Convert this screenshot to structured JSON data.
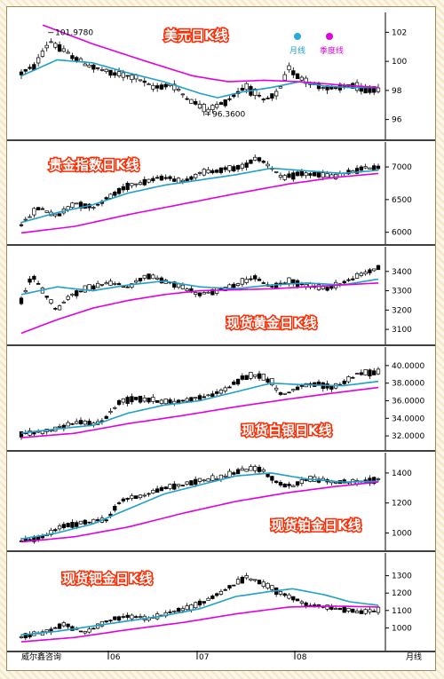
{
  "colors": {
    "candle_up": "#ffffff",
    "candle_down": "#000000",
    "ma_month": "#1ea0c8",
    "ma_quarter": "#e000e0",
    "title_fill": "#ffffff",
    "title_outline": "#ff2a00",
    "divider": "#000000"
  },
  "legend": {
    "month": "月线",
    "quarter": "季度线"
  },
  "x_axis": {
    "labels": [
      "威尔鑫咨询",
      "06",
      "07",
      "08",
      "月线"
    ]
  },
  "chart_data": [
    {
      "type": "candlestick",
      "title": "美元日K线",
      "ylim": [
        95,
        103
      ],
      "yticks": [
        "102",
        "100",
        "98",
        "96"
      ],
      "yvals": [
        102,
        100,
        98,
        96
      ],
      "annotations": [
        {
          "text": "101.9780",
          "x_frac": 0.09,
          "y": 101.978
        },
        {
          "text": "96.3600",
          "x_frac": 0.53,
          "y": 96.36
        }
      ],
      "anchors": [
        [
          0,
          99.2
        ],
        [
          0.04,
          99.7
        ],
        [
          0.08,
          101.4
        ],
        [
          0.12,
          100.7
        ],
        [
          0.18,
          99.8
        ],
        [
          0.25,
          99.2
        ],
        [
          0.32,
          98.9
        ],
        [
          0.37,
          98.2
        ],
        [
          0.42,
          98.4
        ],
        [
          0.47,
          97.4
        ],
        [
          0.52,
          96.6
        ],
        [
          0.57,
          97.2
        ],
        [
          0.63,
          98.3
        ],
        [
          0.68,
          97.3
        ],
        [
          0.72,
          97.8
        ],
        [
          0.75,
          99.5
        ],
        [
          0.78,
          98.9
        ],
        [
          0.83,
          98.3
        ],
        [
          0.88,
          98.1
        ],
        [
          0.92,
          98.4
        ],
        [
          0.96,
          98.0
        ],
        [
          1.0,
          98.1
        ]
      ],
      "month_ma": [
        [
          0,
          99.0
        ],
        [
          0.1,
          100.1
        ],
        [
          0.2,
          99.9
        ],
        [
          0.3,
          99.2
        ],
        [
          0.4,
          98.6
        ],
        [
          0.5,
          97.8
        ],
        [
          0.55,
          97.5
        ],
        [
          0.62,
          97.9
        ],
        [
          0.7,
          98.2
        ],
        [
          0.78,
          98.6
        ],
        [
          0.85,
          98.3
        ],
        [
          0.92,
          98.2
        ],
        [
          1.0,
          98.2
        ]
      ],
      "quarter_ma": [
        [
          0.06,
          102.5
        ],
        [
          0.2,
          101.2
        ],
        [
          0.35,
          100.0
        ],
        [
          0.48,
          99.0
        ],
        [
          0.58,
          98.6
        ],
        [
          0.68,
          98.7
        ],
        [
          0.78,
          98.6
        ],
        [
          0.88,
          98.4
        ],
        [
          1.0,
          98.2
        ]
      ]
    },
    {
      "type": "candlestick",
      "title": "贵金指数日K线",
      "ylim": [
        5900,
        7300
      ],
      "yticks": [
        "7000",
        "6500",
        "6000"
      ],
      "yvals": [
        7000,
        6500,
        6000
      ],
      "annotations": [],
      "anchors": [
        [
          0,
          6120
        ],
        [
          0.05,
          6380
        ],
        [
          0.1,
          6240
        ],
        [
          0.15,
          6450
        ],
        [
          0.2,
          6380
        ],
        [
          0.25,
          6550
        ],
        [
          0.3,
          6720
        ],
        [
          0.35,
          6780
        ],
        [
          0.4,
          6850
        ],
        [
          0.45,
          6780
        ],
        [
          0.5,
          6900
        ],
        [
          0.55,
          6950
        ],
        [
          0.62,
          7000
        ],
        [
          0.66,
          7150
        ],
        [
          0.7,
          7000
        ],
        [
          0.73,
          6820
        ],
        [
          0.78,
          6900
        ],
        [
          0.83,
          6880
        ],
        [
          0.88,
          6850
        ],
        [
          0.92,
          6920
        ],
        [
          0.96,
          6980
        ],
        [
          1.0,
          7000
        ]
      ],
      "month_ma": [
        [
          0,
          6150
        ],
        [
          0.1,
          6300
        ],
        [
          0.2,
          6420
        ],
        [
          0.3,
          6600
        ],
        [
          0.4,
          6720
        ],
        [
          0.5,
          6800
        ],
        [
          0.6,
          6880
        ],
        [
          0.7,
          6980
        ],
        [
          0.8,
          6940
        ],
        [
          0.9,
          6900
        ],
        [
          1.0,
          6950
        ]
      ],
      "quarter_ma": [
        [
          0,
          5990
        ],
        [
          0.15,
          6090
        ],
        [
          0.3,
          6270
        ],
        [
          0.45,
          6430
        ],
        [
          0.6,
          6590
        ],
        [
          0.75,
          6740
        ],
        [
          0.88,
          6840
        ],
        [
          1.0,
          6900
        ]
      ]
    },
    {
      "type": "candlestick",
      "title": "现货黄金日K线",
      "ylim": [
        3050,
        3500
      ],
      "yticks": [
        "3400",
        "3300",
        "3200",
        "3100"
      ],
      "yvals": [
        3400,
        3300,
        3200,
        3100
      ],
      "annotations": [],
      "anchors": [
        [
          0,
          3250
        ],
        [
          0.03,
          3380
        ],
        [
          0.06,
          3300
        ],
        [
          0.1,
          3200
        ],
        [
          0.14,
          3280
        ],
        [
          0.2,
          3320
        ],
        [
          0.25,
          3340
        ],
        [
          0.3,
          3320
        ],
        [
          0.35,
          3380
        ],
        [
          0.4,
          3350
        ],
        [
          0.45,
          3320
        ],
        [
          0.5,
          3280
        ],
        [
          0.55,
          3300
        ],
        [
          0.6,
          3330
        ],
        [
          0.65,
          3370
        ],
        [
          0.7,
          3320
        ],
        [
          0.75,
          3350
        ],
        [
          0.8,
          3330
        ],
        [
          0.85,
          3310
        ],
        [
          0.9,
          3340
        ],
        [
          0.95,
          3380
        ],
        [
          1.0,
          3420
        ]
      ],
      "month_ma": [
        [
          0,
          3280
        ],
        [
          0.1,
          3320
        ],
        [
          0.2,
          3300
        ],
        [
          0.3,
          3330
        ],
        [
          0.4,
          3350
        ],
        [
          0.5,
          3320
        ],
        [
          0.6,
          3310
        ],
        [
          0.7,
          3330
        ],
        [
          0.8,
          3340
        ],
        [
          0.9,
          3330
        ],
        [
          1.0,
          3360
        ]
      ],
      "quarter_ma": [
        [
          0,
          3080
        ],
        [
          0.1,
          3150
        ],
        [
          0.2,
          3210
        ],
        [
          0.3,
          3250
        ],
        [
          0.4,
          3280
        ],
        [
          0.5,
          3300
        ],
        [
          0.6,
          3305
        ],
        [
          0.7,
          3310
        ],
        [
          0.8,
          3320
        ],
        [
          0.9,
          3330
        ],
        [
          1.0,
          3340
        ]
      ]
    },
    {
      "type": "candlestick",
      "title": "现货白银日K线",
      "ylim": [
        31000,
        41500
      ],
      "yticks": [
        "40.0000",
        "38.0000",
        "36.0000",
        "34.0000",
        "32.0000"
      ],
      "yvals": [
        40000,
        38000,
        36000,
        34000,
        32000
      ],
      "annotations": [],
      "anchors": [
        [
          0,
          32200
        ],
        [
          0.08,
          32600
        ],
        [
          0.15,
          33500
        ],
        [
          0.22,
          33400
        ],
        [
          0.28,
          36000
        ],
        [
          0.32,
          36300
        ],
        [
          0.38,
          36000
        ],
        [
          0.43,
          35800
        ],
        [
          0.48,
          36300
        ],
        [
          0.52,
          36500
        ],
        [
          0.57,
          37200
        ],
        [
          0.62,
          38600
        ],
        [
          0.66,
          39000
        ],
        [
          0.7,
          38200
        ],
        [
          0.73,
          36600
        ],
        [
          0.78,
          37600
        ],
        [
          0.83,
          37900
        ],
        [
          0.87,
          37500
        ],
        [
          0.9,
          38000
        ],
        [
          0.94,
          39000
        ],
        [
          0.97,
          39200
        ],
        [
          1.0,
          39300
        ]
      ],
      "month_ma": [
        [
          0,
          32300
        ],
        [
          0.1,
          32800
        ],
        [
          0.2,
          33200
        ],
        [
          0.3,
          34600
        ],
        [
          0.4,
          35500
        ],
        [
          0.5,
          36000
        ],
        [
          0.6,
          37000
        ],
        [
          0.7,
          38000
        ],
        [
          0.8,
          37800
        ],
        [
          0.9,
          37700
        ],
        [
          1.0,
          38200
        ]
      ],
      "quarter_ma": [
        [
          0,
          31800
        ],
        [
          0.15,
          32300
        ],
        [
          0.3,
          33400
        ],
        [
          0.45,
          34300
        ],
        [
          0.6,
          35300
        ],
        [
          0.75,
          36200
        ],
        [
          0.88,
          36900
        ],
        [
          1.0,
          37500
        ]
      ]
    },
    {
      "type": "candlestick",
      "title": "现货铂金日K线",
      "ylim": [
        920,
        1500
      ],
      "yticks": [
        "1400",
        "1200",
        "1000"
      ],
      "yvals": [
        1400,
        1200,
        1000
      ],
      "annotations": [],
      "anchors": [
        [
          0,
          950
        ],
        [
          0.06,
          970
        ],
        [
          0.12,
          1050
        ],
        [
          0.18,
          1070
        ],
        [
          0.24,
          1090
        ],
        [
          0.28,
          1220
        ],
        [
          0.34,
          1250
        ],
        [
          0.4,
          1300
        ],
        [
          0.45,
          1320
        ],
        [
          0.5,
          1350
        ],
        [
          0.56,
          1370
        ],
        [
          0.62,
          1420
        ],
        [
          0.67,
          1430
        ],
        [
          0.72,
          1330
        ],
        [
          0.76,
          1310
        ],
        [
          0.8,
          1360
        ],
        [
          0.85,
          1350
        ],
        [
          0.9,
          1340
        ],
        [
          0.95,
          1340
        ],
        [
          1.0,
          1360
        ]
      ],
      "month_ma": [
        [
          0,
          960
        ],
        [
          0.1,
          1000
        ],
        [
          0.2,
          1060
        ],
        [
          0.3,
          1160
        ],
        [
          0.4,
          1260
        ],
        [
          0.5,
          1320
        ],
        [
          0.6,
          1380
        ],
        [
          0.7,
          1400
        ],
        [
          0.8,
          1360
        ],
        [
          0.9,
          1340
        ],
        [
          1.0,
          1345
        ]
      ],
      "quarter_ma": [
        [
          0,
          940
        ],
        [
          0.15,
          975
        ],
        [
          0.3,
          1040
        ],
        [
          0.45,
          1130
        ],
        [
          0.6,
          1210
        ],
        [
          0.75,
          1270
        ],
        [
          0.88,
          1310
        ],
        [
          1.0,
          1340
        ]
      ]
    },
    {
      "type": "candlestick",
      "title": "现货钯金日K线",
      "ylim": [
        900,
        1400
      ],
      "yticks": [
        "1300",
        "1200",
        "1100",
        "1000"
      ],
      "yvals": [
        1300,
        1200,
        1100,
        1000
      ],
      "annotations": [],
      "anchors": [
        [
          0,
          950
        ],
        [
          0.06,
          970
        ],
        [
          0.12,
          1020
        ],
        [
          0.18,
          970
        ],
        [
          0.24,
          1040
        ],
        [
          0.3,
          1070
        ],
        [
          0.36,
          1050
        ],
        [
          0.42,
          1090
        ],
        [
          0.48,
          1120
        ],
        [
          0.53,
          1170
        ],
        [
          0.58,
          1230
        ],
        [
          0.63,
          1290
        ],
        [
          0.67,
          1260
        ],
        [
          0.71,
          1220
        ],
        [
          0.75,
          1180
        ],
        [
          0.8,
          1130
        ],
        [
          0.85,
          1120
        ],
        [
          0.9,
          1110
        ],
        [
          0.95,
          1090
        ],
        [
          1.0,
          1100
        ]
      ],
      "month_ma": [
        [
          0,
          960
        ],
        [
          0.1,
          980
        ],
        [
          0.2,
          1010
        ],
        [
          0.3,
          1040
        ],
        [
          0.4,
          1070
        ],
        [
          0.5,
          1110
        ],
        [
          0.6,
          1180
        ],
        [
          0.7,
          1210
        ],
        [
          0.76,
          1225
        ],
        [
          0.85,
          1190
        ],
        [
          0.92,
          1150
        ],
        [
          1.0,
          1130
        ]
      ],
      "quarter_ma": [
        [
          0,
          920
        ],
        [
          0.15,
          945
        ],
        [
          0.3,
          990
        ],
        [
          0.45,
          1030
        ],
        [
          0.6,
          1080
        ],
        [
          0.75,
          1120
        ],
        [
          0.88,
          1125
        ],
        [
          1.0,
          1120
        ]
      ]
    }
  ]
}
